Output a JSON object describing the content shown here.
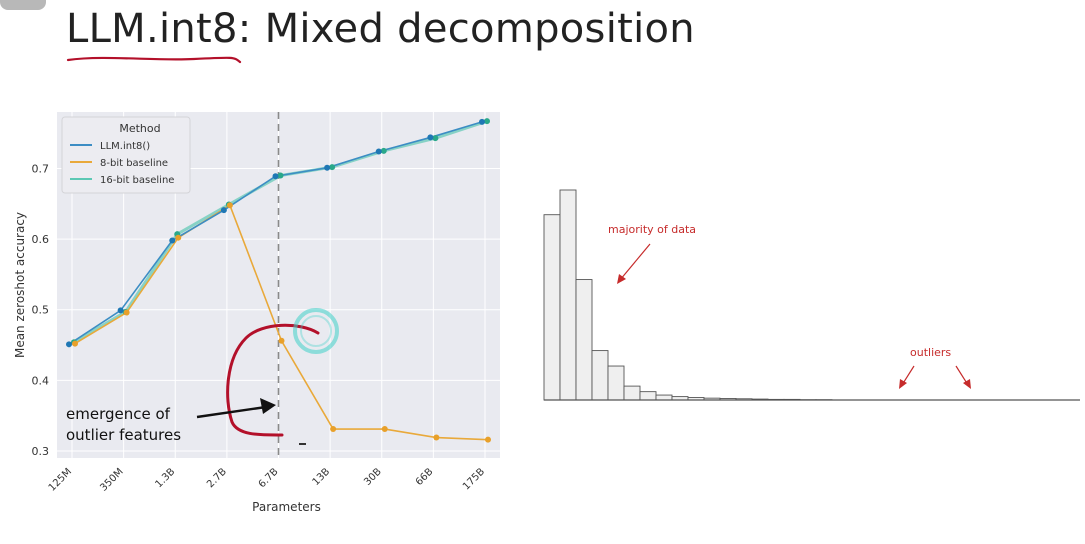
{
  "slide": {
    "title": "LLM.int8: Mixed decomposition",
    "annotation": "emergence of\noutlier features"
  },
  "colors": {
    "int8": "#3c8dc4",
    "int8_points": "#1f77b4",
    "baseline8": "#e9a93a",
    "baseline16": "#5cc8b4",
    "plot_bg": "#e9eaf0",
    "grid": "#ffffff",
    "pen_red": "#b3102a",
    "cursor_cyan": "#40d0c8",
    "hist_fill": "#efefef",
    "hist_stroke": "#555555",
    "hist_label": "#c62b2b"
  },
  "chart_data": [
    {
      "type": "line",
      "xlabel": "Parameters",
      "ylabel": "Mean zeroshot accuracy",
      "categories": [
        "125M",
        "350M",
        "1.3B",
        "2.7B",
        "6.7B",
        "13B",
        "30B",
        "66B",
        "175B"
      ],
      "ylim": [
        0.29,
        0.78
      ],
      "yticks": [
        0.3,
        0.4,
        0.5,
        0.6,
        0.7
      ],
      "yticklabels": [
        "0.3",
        "0.4",
        "0.5",
        "0.6",
        "0.7"
      ],
      "grid": true,
      "legend": {
        "title": "Method",
        "position": "top-left"
      },
      "series": [
        {
          "name": "LLM.int8()",
          "values": [
            0.451,
            0.499,
            0.598,
            0.641,
            0.689,
            0.701,
            0.724,
            0.744,
            0.766
          ]
        },
        {
          "name": "8-bit baseline",
          "values": [
            0.452,
            0.496,
            0.602,
            0.648,
            0.456,
            0.331,
            0.331,
            0.319,
            0.316
          ]
        },
        {
          "name": "16-bit baseline",
          "values": [
            0.454,
            0.497,
            0.607,
            0.649,
            0.69,
            0.702,
            0.725,
            0.743,
            0.767
          ]
        }
      ],
      "vline_at": "6.7B"
    },
    {
      "type": "bar",
      "values": [
        0.6,
        0.68,
        0.39,
        0.16,
        0.11,
        0.045,
        0.027,
        0.016,
        0.011,
        0.008,
        0.006,
        0.005,
        0.004,
        0.003,
        0.002,
        0.002,
        0.001,
        0.001
      ],
      "annotations": [
        "majority of data",
        "outliers"
      ]
    }
  ]
}
